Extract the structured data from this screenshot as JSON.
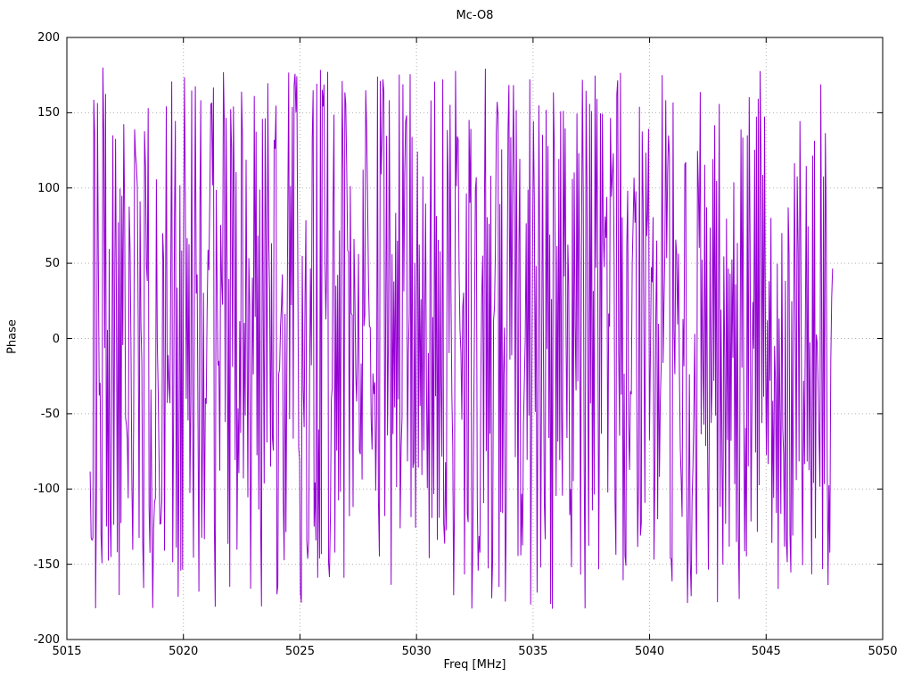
{
  "title": "Mc-O8",
  "chart_data": {
    "type": "line",
    "title": "Mc-O8",
    "xlabel": "Freq [MHz]",
    "ylabel": "Phase",
    "xlim": [
      5015,
      5050
    ],
    "ylim": [
      -200,
      200
    ],
    "x_ticks": [
      "5015",
      "5020",
      "5025",
      "5030",
      "5035",
      "5040",
      "5045",
      "5050"
    ],
    "x_tick_values": [
      5015,
      5020,
      5025,
      5030,
      5035,
      5040,
      5045,
      5050
    ],
    "y_ticks": [
      "-200",
      "-150",
      "-100",
      "-50",
      "0",
      "50",
      "100",
      "150",
      "200"
    ],
    "y_tick_values": [
      -200,
      -150,
      -100,
      -50,
      0,
      50,
      100,
      150,
      200
    ],
    "grid": true,
    "legend_position": "none",
    "line_color": "#9400D3",
    "grid_color": "#b0b0b0",
    "border_color": "#000000",
    "series": [
      {
        "name": "phase",
        "description": "Densely sampled wrapped phase noise; values jump across the full -180 to +180 deg range over the measured band",
        "x_start": 5016.0,
        "x_end": 5047.85,
        "n_points": 820,
        "y_wrap_min": -180,
        "y_wrap_max": 180,
        "seed": 1337
      }
    ]
  },
  "layout_note": "gnuplot-style single panel line chart"
}
